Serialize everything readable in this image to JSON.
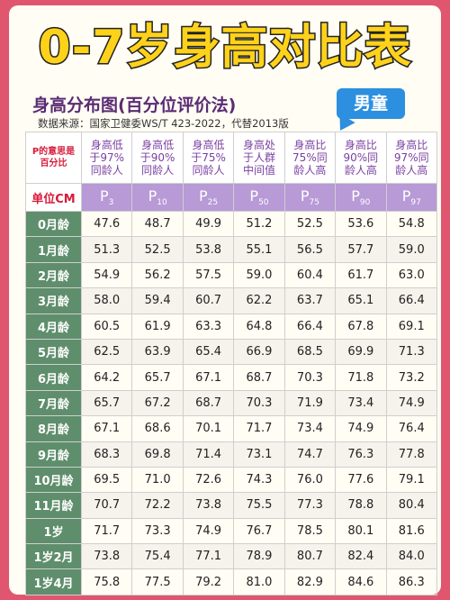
{
  "title": "0-7岁身高对比表",
  "subtitle": "身高分布图(百分位评价法)",
  "source": "数据来源：国家卫健委WS/T 423-2022，代替2013版",
  "badge": "男童",
  "corner_label": [
    "P的意思是",
    "百分比"
  ],
  "unit_label": "单位CM",
  "columns": [
    {
      "desc": [
        "身高低",
        "于97%",
        "同龄人"
      ],
      "p": "P",
      "sub": "3"
    },
    {
      "desc": [
        "身高低",
        "于90%",
        "同龄人"
      ],
      "p": "P",
      "sub": "10"
    },
    {
      "desc": [
        "身高低",
        "于75%",
        "同龄人"
      ],
      "p": "P",
      "sub": "25"
    },
    {
      "desc": [
        "身高处",
        "于人群",
        "中间值"
      ],
      "p": "P",
      "sub": "50"
    },
    {
      "desc": [
        "身高比",
        "75%同",
        "龄人高"
      ],
      "p": "P",
      "sub": "75"
    },
    {
      "desc": [
        "身高比",
        "90%同",
        "龄人高"
      ],
      "p": "P",
      "sub": "90"
    },
    {
      "desc": [
        "身高比",
        "97%同",
        "龄人高"
      ],
      "p": "P",
      "sub": "97"
    }
  ],
  "rows": [
    {
      "age": "0月龄",
      "values": [
        "47.6",
        "48.7",
        "49.9",
        "51.2",
        "52.5",
        "53.6",
        "54.8"
      ]
    },
    {
      "age": "1月龄",
      "values": [
        "51.3",
        "52.5",
        "53.8",
        "55.1",
        "56.5",
        "57.7",
        "59.0"
      ]
    },
    {
      "age": "2月龄",
      "values": [
        "54.9",
        "56.2",
        "57.5",
        "59.0",
        "60.4",
        "61.7",
        "63.0"
      ]
    },
    {
      "age": "3月龄",
      "values": [
        "58.0",
        "59.4",
        "60.7",
        "62.2",
        "63.7",
        "65.1",
        "66.4"
      ]
    },
    {
      "age": "4月龄",
      "values": [
        "60.5",
        "61.9",
        "63.3",
        "64.8",
        "66.4",
        "67.8",
        "69.1"
      ]
    },
    {
      "age": "5月龄",
      "values": [
        "62.5",
        "63.9",
        "65.4",
        "66.9",
        "68.5",
        "69.9",
        "71.3"
      ]
    },
    {
      "age": "6月龄",
      "values": [
        "64.2",
        "65.7",
        "67.1",
        "68.7",
        "70.3",
        "71.8",
        "73.2"
      ]
    },
    {
      "age": "7月龄",
      "values": [
        "65.7",
        "67.2",
        "68.7",
        "70.3",
        "71.9",
        "73.4",
        "74.9"
      ]
    },
    {
      "age": "8月龄",
      "values": [
        "67.1",
        "68.6",
        "70.1",
        "71.7",
        "73.4",
        "74.9",
        "76.4"
      ]
    },
    {
      "age": "9月龄",
      "values": [
        "68.3",
        "69.8",
        "71.4",
        "73.1",
        "74.7",
        "76.3",
        "77.8"
      ]
    },
    {
      "age": "10月龄",
      "values": [
        "69.5",
        "71.0",
        "72.6",
        "74.3",
        "76.0",
        "77.6",
        "79.1"
      ]
    },
    {
      "age": "11月龄",
      "values": [
        "70.7",
        "72.2",
        "73.8",
        "75.5",
        "77.3",
        "78.8",
        "80.4"
      ]
    },
    {
      "age": "1岁",
      "values": [
        "71.7",
        "73.3",
        "74.9",
        "76.7",
        "78.5",
        "80.1",
        "81.6"
      ]
    },
    {
      "age": "1岁2月",
      "values": [
        "73.8",
        "75.4",
        "77.1",
        "78.9",
        "80.7",
        "82.4",
        "84.0"
      ]
    },
    {
      "age": "1岁4月",
      "values": [
        "75.8",
        "77.5",
        "79.2",
        "81.0",
        "82.9",
        "84.6",
        "86.3"
      ]
    }
  ],
  "colors": {
    "background": "#e0566e",
    "title_fill": "#ffd21a",
    "subtitle": "#5a2b73",
    "badge": "#2c8fe0",
    "percentile_header": "#b79ad6",
    "age_column": "#5f8e6c",
    "accent_red": "#d81b3a"
  }
}
